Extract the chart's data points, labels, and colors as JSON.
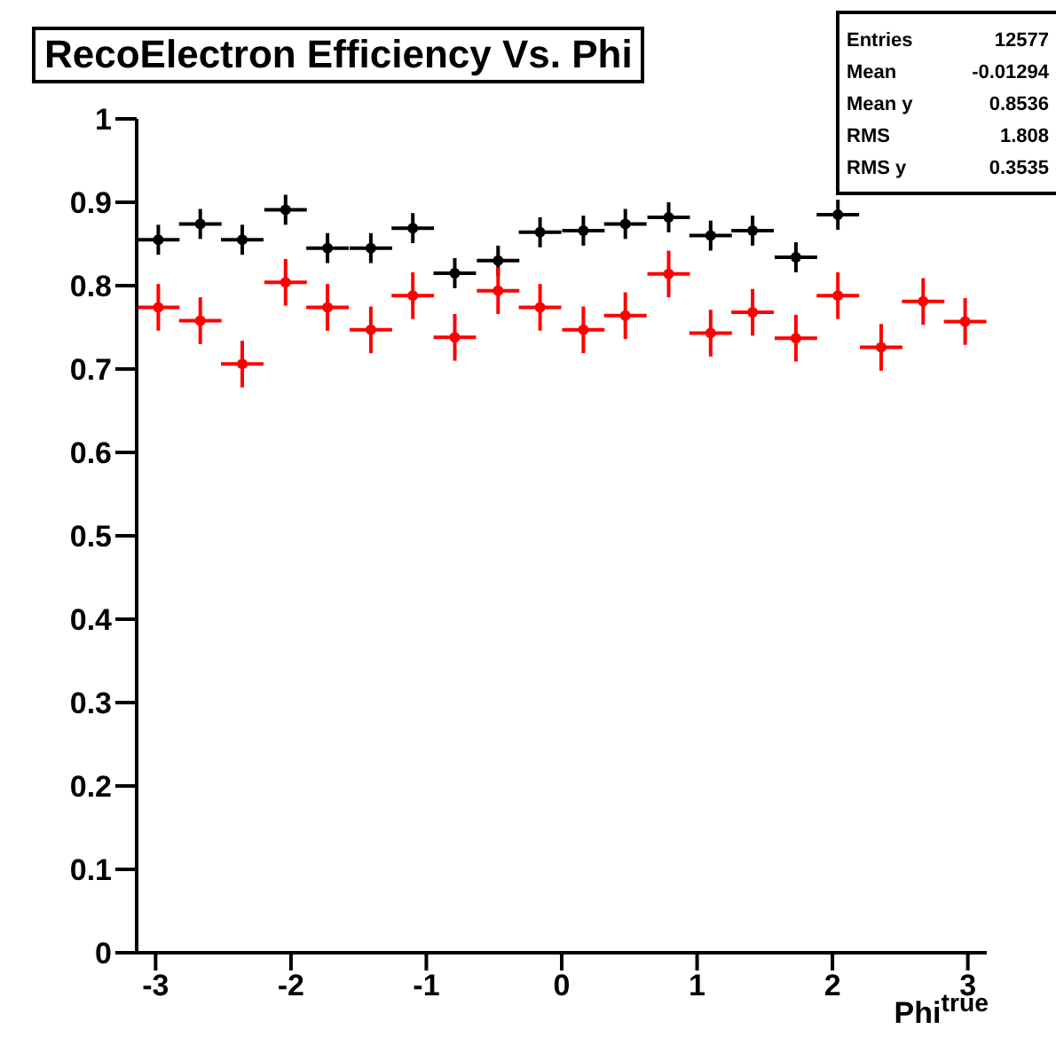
{
  "chart_data": {
    "type": "scatter",
    "title": "RecoElectron Efficiency Vs. Phi",
    "xlabel": "Phi$^{true}$",
    "x": [
      -2.98,
      -2.67,
      -2.36,
      -2.04,
      -1.73,
      -1.41,
      -1.1,
      -0.79,
      -0.47,
      -0.16,
      0.16,
      0.47,
      0.79,
      1.1,
      1.41,
      1.73,
      2.04,
      2.36,
      2.67,
      2.98
    ],
    "series": [
      {
        "color": "#000000",
        "values": [
          0.855,
          0.874,
          0.855,
          0.891,
          0.845,
          0.845,
          0.869,
          0.815,
          0.83,
          0.864,
          0.866,
          0.874,
          0.882,
          0.86,
          0.866,
          0.834,
          0.885,
          null,
          null,
          null
        ],
        "errors": [
          0.018,
          0.018,
          0.018,
          0.018,
          0.018,
          0.018,
          0.018,
          0.018,
          0.018,
          0.018,
          0.018,
          0.018,
          0.018,
          0.018,
          0.018,
          0.018,
          0.018,
          null,
          null,
          null
        ],
        "xerrors": [
          0.157,
          0.157,
          0.157,
          0.157,
          0.157,
          0.157,
          0.157,
          0.157,
          0.157,
          0.157,
          0.157,
          0.157,
          0.157,
          0.157,
          0.157,
          0.157,
          0.157,
          null,
          null,
          null
        ]
      },
      {
        "color": "#ff0000",
        "values": [
          0.774,
          0.758,
          0.706,
          0.804,
          0.774,
          0.747,
          0.788,
          0.738,
          0.794,
          0.774,
          0.747,
          0.764,
          0.814,
          0.743,
          0.768,
          0.737,
          0.788,
          0.726,
          0.781,
          0.757
        ],
        "errors": [
          0.028,
          0.028,
          0.028,
          0.028,
          0.028,
          0.028,
          0.028,
          0.028,
          0.028,
          0.028,
          0.028,
          0.028,
          0.028,
          0.028,
          0.028,
          0.028,
          0.028,
          0.028,
          0.028,
          0.028
        ],
        "xerrors": [
          0.157,
          0.157,
          0.157,
          0.157,
          0.157,
          0.157,
          0.157,
          0.157,
          0.157,
          0.157,
          0.157,
          0.157,
          0.157,
          0.157,
          0.157,
          0.157,
          0.157,
          0.157,
          0.157,
          0.157
        ]
      }
    ],
    "xlim": [
      -3.14,
      3.14
    ],
    "xticks": [
      -3,
      -2,
      -1,
      0,
      1,
      2,
      3
    ],
    "ylim": [
      0,
      1
    ],
    "yticks": [
      0,
      0.1,
      0.2,
      0.3,
      0.4,
      0.5,
      0.6,
      0.7,
      0.8,
      0.9,
      1
    ],
    "marker": "circle",
    "annotations": [
      "Entries 12577",
      "Mean -0.01294",
      "Mean y 0.8536",
      "RMS 1.808",
      "RMS y 0.3535"
    ]
  }
}
